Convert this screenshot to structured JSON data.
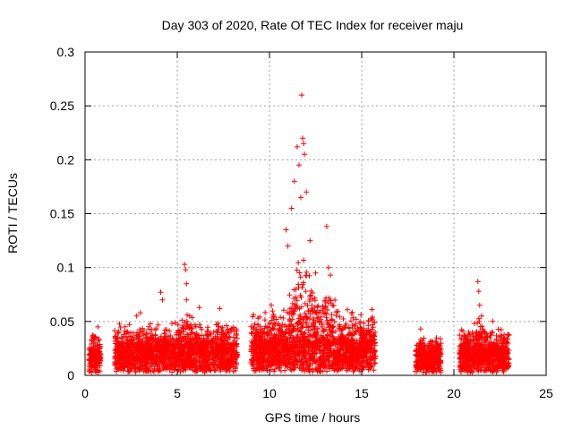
{
  "chart_data": {
    "type": "scatter",
    "title": "Day 303 of 2020, Rate Of TEC Index for receiver maju",
    "xlabel": "GPS time / hours",
    "ylabel": "ROTI / TECUs",
    "xlim": [
      0,
      25
    ],
    "ylim": [
      0,
      0.3
    ],
    "xticks": [
      0,
      5,
      10,
      15,
      20,
      25
    ],
    "xtick_labels": [
      "0",
      "5",
      "10",
      "15",
      "20",
      "25"
    ],
    "yticks": [
      0,
      0.05,
      0.1,
      0.15,
      0.2,
      0.25,
      0.3
    ],
    "ytick_labels": [
      "0",
      "0.05",
      "0.1",
      "0.15",
      "0.2",
      "0.25",
      "0.3"
    ],
    "grid": true,
    "marker": "plus",
    "color": "#ff0000",
    "segments": [
      {
        "start": 0.2,
        "end": 0.85,
        "base": 0.017,
        "amp": 0.015
      },
      {
        "start": 1.6,
        "end": 8.25,
        "base": 0.02,
        "amp": 0.02
      },
      {
        "start": 9.0,
        "end": 15.75,
        "base": 0.022,
        "amp": 0.03
      },
      {
        "start": 17.9,
        "end": 19.3,
        "base": 0.017,
        "amp": 0.015
      },
      {
        "start": 20.3,
        "end": 23.0,
        "base": 0.018,
        "amp": 0.02
      }
    ],
    "notable_points": [
      {
        "x": 0.7,
        "y": 0.045
      },
      {
        "x": 2.8,
        "y": 0.055
      },
      {
        "x": 3.0,
        "y": 0.058
      },
      {
        "x": 4.1,
        "y": 0.077
      },
      {
        "x": 4.2,
        "y": 0.07
      },
      {
        "x": 5.4,
        "y": 0.103
      },
      {
        "x": 5.45,
        "y": 0.098
      },
      {
        "x": 5.5,
        "y": 0.085
      },
      {
        "x": 5.5,
        "y": 0.07
      },
      {
        "x": 6.2,
        "y": 0.063
      },
      {
        "x": 7.3,
        "y": 0.062
      },
      {
        "x": 10.1,
        "y": 0.065
      },
      {
        "x": 10.9,
        "y": 0.135
      },
      {
        "x": 11.0,
        "y": 0.12
      },
      {
        "x": 11.2,
        "y": 0.155
      },
      {
        "x": 11.35,
        "y": 0.18
      },
      {
        "x": 11.5,
        "y": 0.212
      },
      {
        "x": 11.6,
        "y": 0.195
      },
      {
        "x": 11.75,
        "y": 0.26
      },
      {
        "x": 11.8,
        "y": 0.22
      },
      {
        "x": 11.85,
        "y": 0.215
      },
      {
        "x": 11.9,
        "y": 0.205
      },
      {
        "x": 12.0,
        "y": 0.17
      },
      {
        "x": 11.7,
        "y": 0.165
      },
      {
        "x": 12.2,
        "y": 0.125
      },
      {
        "x": 12.5,
        "y": 0.095
      },
      {
        "x": 13.1,
        "y": 0.138
      },
      {
        "x": 13.2,
        "y": 0.1
      },
      {
        "x": 13.3,
        "y": 0.093
      },
      {
        "x": 14.7,
        "y": 0.052
      },
      {
        "x": 18.2,
        "y": 0.043
      },
      {
        "x": 21.3,
        "y": 0.087
      },
      {
        "x": 21.35,
        "y": 0.078
      },
      {
        "x": 21.4,
        "y": 0.065
      },
      {
        "x": 21.5,
        "y": 0.055
      },
      {
        "x": 22.1,
        "y": 0.05
      }
    ]
  }
}
